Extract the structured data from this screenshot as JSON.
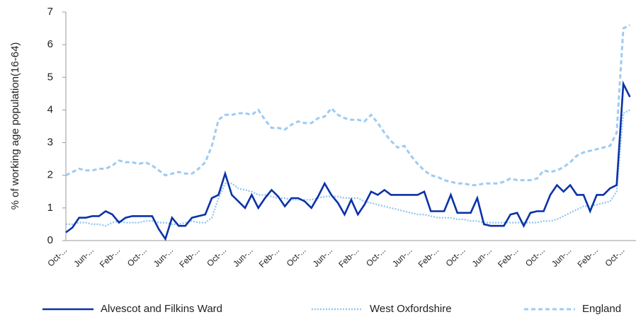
{
  "chart_data": {
    "type": "line",
    "ylabel": "% of working age population(16-64)",
    "categories": [
      "Oct-...",
      null,
      null,
      null,
      "Jun-...",
      null,
      null,
      null,
      "Feb-...",
      null,
      null,
      null,
      "Oct-...",
      null,
      null,
      null,
      "Jun-...",
      null,
      null,
      null,
      "Feb-...",
      null,
      null,
      null,
      "Oct-...",
      null,
      null,
      null,
      "Jun-...",
      null,
      null,
      null,
      "Feb-...",
      null,
      null,
      null,
      "Oct-...",
      null,
      null,
      null,
      "Jun-...",
      null,
      null,
      null,
      "Feb-...",
      null,
      null,
      null,
      "Oct-...",
      null,
      null,
      null,
      "Jun-...",
      null,
      null,
      null,
      "Feb-...",
      null,
      null,
      null,
      "Oct-...",
      null,
      null,
      null,
      "Jun-...",
      null,
      null,
      null,
      "Feb-...",
      null,
      null,
      null,
      "Oct-...",
      null,
      null,
      null,
      "Jun-...",
      null,
      null,
      null,
      "Feb-...",
      null,
      null,
      null,
      "Oct-...",
      null
    ],
    "series": [
      {
        "name": "Alvescot and Filkins Ward",
        "color": "#0a32a8",
        "dash": "solid",
        "values": [
          0.25,
          0.4,
          0.7,
          0.7,
          0.75,
          0.75,
          0.9,
          0.8,
          0.55,
          0.7,
          0.75,
          0.75,
          0.75,
          0.75,
          0.35,
          0.05,
          0.7,
          0.45,
          0.45,
          0.7,
          0.75,
          0.8,
          1.3,
          1.4,
          2.05,
          1.4,
          1.2,
          1.0,
          1.4,
          1.0,
          1.3,
          1.55,
          1.35,
          1.05,
          1.3,
          1.3,
          1.2,
          1.0,
          1.35,
          1.75,
          1.4,
          1.15,
          0.8,
          1.25,
          0.8,
          1.1,
          1.5,
          1.4,
          1.55,
          1.4,
          1.4,
          1.4,
          1.4,
          1.4,
          1.5,
          0.9,
          0.9,
          0.9,
          1.4,
          0.85,
          0.85,
          0.85,
          1.3,
          0.5,
          0.45,
          0.45,
          0.45,
          0.8,
          0.85,
          0.45,
          0.85,
          0.9,
          0.9,
          1.4,
          1.7,
          1.5,
          1.7,
          1.4,
          1.4,
          0.9,
          1.4,
          1.4,
          1.6,
          1.7,
          4.8,
          4.4
        ]
      },
      {
        "name": "West Oxfordshire",
        "color": "#8ec3f0",
        "dash": "dotted",
        "values": [
          0.5,
          0.5,
          0.55,
          0.55,
          0.5,
          0.5,
          0.45,
          0.55,
          0.6,
          0.55,
          0.55,
          0.55,
          0.6,
          0.6,
          0.55,
          0.55,
          0.5,
          0.5,
          0.55,
          0.6,
          0.55,
          0.55,
          0.7,
          1.3,
          1.75,
          1.75,
          1.6,
          1.55,
          1.5,
          1.4,
          1.4,
          1.35,
          1.3,
          1.3,
          1.25,
          1.25,
          1.25,
          1.25,
          1.3,
          1.35,
          1.35,
          1.35,
          1.3,
          1.3,
          1.3,
          1.2,
          1.15,
          1.1,
          1.05,
          1.0,
          0.95,
          0.9,
          0.85,
          0.8,
          0.8,
          0.75,
          0.7,
          0.7,
          0.7,
          0.65,
          0.65,
          0.6,
          0.6,
          0.55,
          0.55,
          0.55,
          0.55,
          0.55,
          0.55,
          0.55,
          0.55,
          0.55,
          0.6,
          0.6,
          0.65,
          0.75,
          0.85,
          0.95,
          1.05,
          1.05,
          1.1,
          1.15,
          1.2,
          1.5,
          3.9,
          4.0
        ]
      },
      {
        "name": "England",
        "color": "#9dcbf2",
        "dash": "dashed",
        "values": [
          2.0,
          2.1,
          2.2,
          2.15,
          2.15,
          2.2,
          2.2,
          2.3,
          2.45,
          2.4,
          2.4,
          2.35,
          2.4,
          2.3,
          2.15,
          2.0,
          2.05,
          2.1,
          2.05,
          2.05,
          2.2,
          2.4,
          2.9,
          3.7,
          3.85,
          3.85,
          3.9,
          3.9,
          3.85,
          4.0,
          3.7,
          3.45,
          3.45,
          3.4,
          3.55,
          3.65,
          3.6,
          3.6,
          3.75,
          3.8,
          4.05,
          3.85,
          3.75,
          3.7,
          3.7,
          3.65,
          3.85,
          3.6,
          3.3,
          3.05,
          2.85,
          2.9,
          2.6,
          2.35,
          2.15,
          2.0,
          1.95,
          1.85,
          1.8,
          1.75,
          1.75,
          1.7,
          1.7,
          1.75,
          1.75,
          1.75,
          1.8,
          1.9,
          1.85,
          1.85,
          1.85,
          1.9,
          2.15,
          2.1,
          2.15,
          2.25,
          2.4,
          2.6,
          2.7,
          2.75,
          2.8,
          2.85,
          2.9,
          3.3,
          6.5,
          6.6
        ]
      }
    ],
    "ylim": [
      0,
      7
    ],
    "yticks": [
      0,
      1,
      2,
      3,
      4,
      5,
      6,
      7
    ],
    "legend": "bottom"
  }
}
